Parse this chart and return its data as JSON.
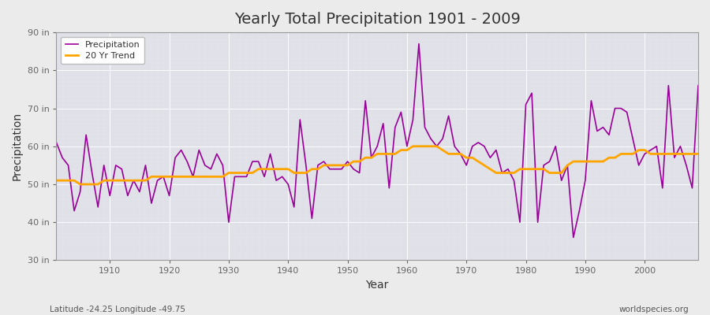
{
  "title": "Yearly Total Precipitation 1901 - 2009",
  "xlabel": "Year",
  "ylabel": "Precipitation",
  "subtitle_left": "Latitude -24.25 Longitude -49.75",
  "subtitle_right": "worldspecies.org",
  "ylim": [
    30,
    90
  ],
  "yticks": [
    30,
    40,
    50,
    60,
    70,
    80,
    90
  ],
  "ytick_labels": [
    "30 in",
    "40 in",
    "50 in",
    "60 in",
    "70 in",
    "80 in",
    "90 in"
  ],
  "xlim": [
    1901,
    2009
  ],
  "xticks": [
    1910,
    1920,
    1930,
    1940,
    1950,
    1960,
    1970,
    1980,
    1990,
    2000
  ],
  "precip_color": "#990099",
  "trend_color": "#FFA500",
  "fig_bg_color": "#ebebeb",
  "plot_bg_color": "#e0e0e8",
  "legend_entries": [
    "Precipitation",
    "20 Yr Trend"
  ],
  "years": [
    1901,
    1902,
    1903,
    1904,
    1905,
    1906,
    1907,
    1908,
    1909,
    1910,
    1911,
    1912,
    1913,
    1914,
    1915,
    1916,
    1917,
    1918,
    1919,
    1920,
    1921,
    1922,
    1923,
    1924,
    1925,
    1926,
    1927,
    1928,
    1929,
    1930,
    1931,
    1932,
    1933,
    1934,
    1935,
    1936,
    1937,
    1938,
    1939,
    1940,
    1941,
    1942,
    1943,
    1944,
    1945,
    1946,
    1947,
    1948,
    1949,
    1950,
    1951,
    1952,
    1953,
    1954,
    1955,
    1956,
    1957,
    1958,
    1959,
    1960,
    1961,
    1962,
    1963,
    1964,
    1965,
    1966,
    1967,
    1968,
    1969,
    1970,
    1971,
    1972,
    1973,
    1974,
    1975,
    1976,
    1977,
    1978,
    1979,
    1980,
    1981,
    1982,
    1983,
    1984,
    1985,
    1986,
    1987,
    1988,
    1989,
    1990,
    1991,
    1992,
    1993,
    1994,
    1995,
    1996,
    1997,
    1998,
    1999,
    2000,
    2001,
    2002,
    2003,
    2004,
    2005,
    2006,
    2007,
    2008,
    2009
  ],
  "precip": [
    61,
    57,
    55,
    43,
    48,
    63,
    53,
    44,
    55,
    47,
    55,
    54,
    47,
    51,
    48,
    55,
    45,
    51,
    52,
    47,
    57,
    59,
    56,
    52,
    59,
    55,
    54,
    58,
    55,
    40,
    52,
    52,
    52,
    56,
    56,
    52,
    58,
    51,
    52,
    50,
    44,
    67,
    55,
    41,
    55,
    56,
    54,
    54,
    54,
    56,
    54,
    53,
    72,
    57,
    60,
    66,
    49,
    65,
    69,
    60,
    67,
    87,
    65,
    62,
    60,
    62,
    68,
    60,
    58,
    55,
    60,
    61,
    60,
    57,
    59,
    53,
    54,
    51,
    40,
    71,
    74,
    40,
    55,
    56,
    60,
    51,
    55,
    36,
    43,
    51,
    72,
    64,
    65,
    63,
    70,
    70,
    69,
    62,
    55,
    58,
    59,
    60,
    49,
    76,
    57,
    60,
    55,
    49,
    76
  ],
  "trend": [
    51,
    51,
    51,
    51,
    50,
    50,
    50,
    50,
    51,
    51,
    51,
    51,
    51,
    51,
    51,
    51,
    52,
    52,
    52,
    52,
    52,
    52,
    52,
    52,
    52,
    52,
    52,
    52,
    52,
    53,
    53,
    53,
    53,
    53,
    54,
    54,
    54,
    54,
    54,
    54,
    53,
    53,
    53,
    54,
    54,
    55,
    55,
    55,
    55,
    55,
    56,
    56,
    57,
    57,
    58,
    58,
    58,
    58,
    59,
    59,
    60,
    60,
    60,
    60,
    60,
    59,
    58,
    58,
    58,
    57,
    57,
    56,
    55,
    54,
    53,
    53,
    53,
    53,
    54,
    54,
    54,
    54,
    54,
    53,
    53,
    53,
    55,
    56,
    56,
    56,
    56,
    56,
    56,
    57,
    57,
    58,
    58,
    58,
    59,
    59,
    58,
    58,
    58,
    58,
    58,
    58,
    58,
    58,
    58
  ]
}
